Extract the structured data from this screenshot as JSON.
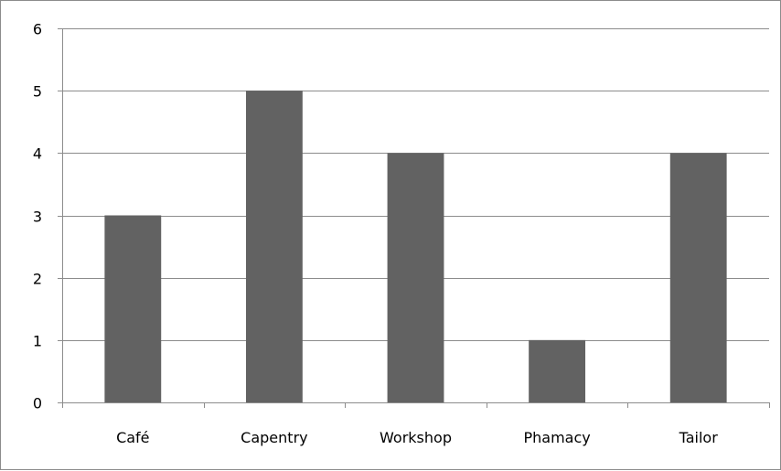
{
  "chart_data": {
    "type": "bar",
    "title": "",
    "xlabel": "",
    "ylabel": "",
    "categories": [
      "Café",
      "Capentry",
      "Workshop",
      "Phamacy",
      "Tailor"
    ],
    "values": [
      3,
      5,
      4,
      1,
      4
    ],
    "ylim": [
      0,
      6
    ],
    "yticks": [
      "0",
      "1",
      "2",
      "3",
      "4",
      "5",
      "6"
    ],
    "grid": true,
    "legend": "none",
    "bar_color": "#626262",
    "grid_color": "#8c8c8c"
  }
}
